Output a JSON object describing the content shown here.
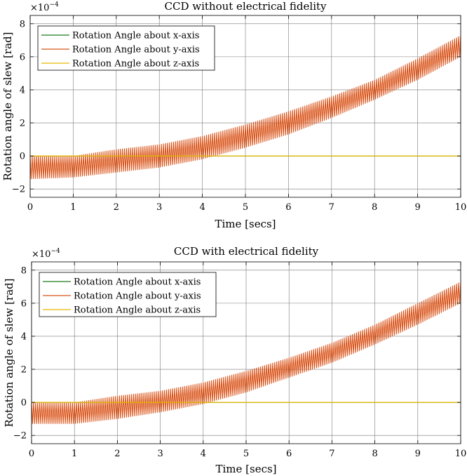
{
  "chart_data": [
    {
      "type": "line",
      "title": "CCD without electrical fidelity",
      "xlabel": "Time [secs]",
      "ylabel": "Rotation angle of slew [rad]",
      "xlim": [
        0,
        10
      ],
      "ylim": [
        -2.5,
        8.5
      ],
      "y_scale_label": "×10⁻⁴",
      "x_ticks": [
        "0",
        "1",
        "2",
        "3",
        "4",
        "5",
        "6",
        "7",
        "8",
        "9",
        "10"
      ],
      "y_ticks": [
        "-2",
        "0",
        "2",
        "4",
        "6",
        "8"
      ],
      "grid": true,
      "legend_position": "top-left",
      "series": [
        {
          "name": "Rotation Angle about x-axis",
          "color": "#1a7a1a",
          "x": [
            0,
            10
          ],
          "y": [
            0,
            0
          ]
        },
        {
          "name": "Rotation Angle about y-axis",
          "color": "#d95319",
          "x": [
            0,
            1,
            2,
            3,
            4,
            5,
            6,
            7,
            8,
            9,
            10
          ],
          "upper": [
            0.0,
            0.0,
            0.4,
            0.7,
            1.2,
            1.9,
            2.7,
            3.6,
            4.6,
            5.9,
            7.3
          ],
          "lower": [
            -1.4,
            -1.3,
            -1.0,
            -0.7,
            -0.2,
            0.5,
            1.3,
            2.3,
            3.4,
            4.6,
            6.0
          ]
        },
        {
          "name": "Rotation Angle about z-axis",
          "color": "#e8b800",
          "x": [
            0,
            10
          ],
          "y": [
            0,
            0
          ]
        }
      ]
    },
    {
      "type": "line",
      "title": "CCD with electrical fidelity",
      "xlabel": "Time [secs]",
      "ylabel": "Rotation angle of slew [rad]",
      "xlim": [
        0,
        10
      ],
      "ylim": [
        -2.5,
        8.5
      ],
      "y_scale_label": "×10⁻⁴",
      "x_ticks": [
        "0",
        "1",
        "2",
        "3",
        "4",
        "5",
        "6",
        "7",
        "8",
        "9",
        "10"
      ],
      "y_ticks": [
        "-2",
        "0",
        "2",
        "4",
        "6",
        "8"
      ],
      "grid": true,
      "legend_position": "top-left",
      "series": [
        {
          "name": "Rotation Angle about x-axis",
          "color": "#1a7a1a",
          "x": [
            0,
            10
          ],
          "y": [
            0,
            0
          ]
        },
        {
          "name": "Rotation Angle about y-axis",
          "color": "#d95319",
          "x": [
            0,
            1,
            2,
            3,
            4,
            5,
            6,
            7,
            8,
            9,
            10
          ],
          "upper": [
            0.0,
            0.0,
            0.4,
            0.7,
            1.2,
            1.9,
            2.7,
            3.6,
            4.7,
            6.0,
            7.3
          ],
          "lower": [
            -1.3,
            -1.3,
            -1.0,
            -0.6,
            -0.1,
            0.6,
            1.5,
            2.4,
            3.5,
            4.7,
            6.0
          ]
        },
        {
          "name": "Rotation Angle about z-axis",
          "color": "#e8b800",
          "x": [
            0,
            10
          ],
          "y": [
            0,
            0
          ]
        }
      ]
    }
  ]
}
